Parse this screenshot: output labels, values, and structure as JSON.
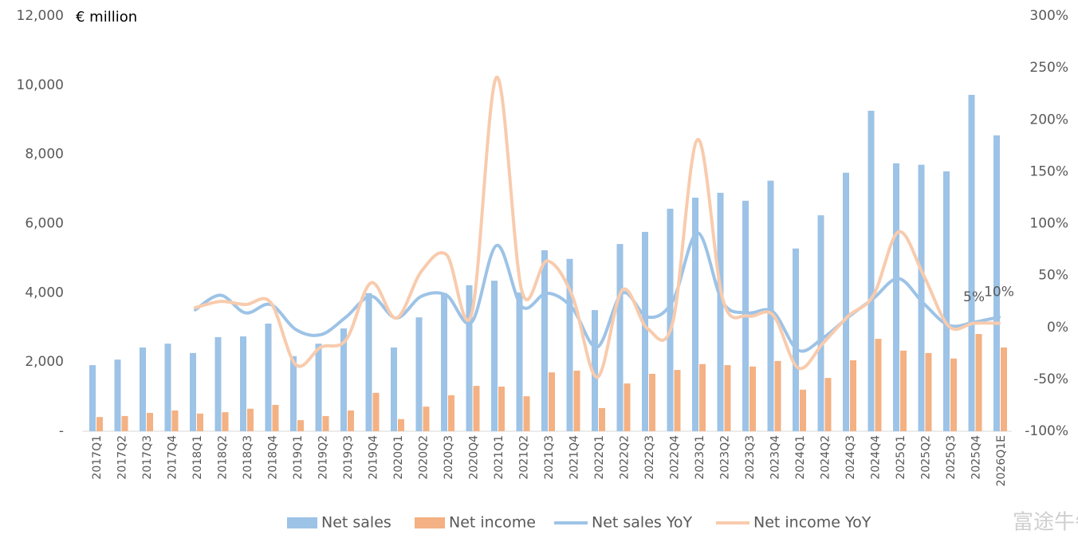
{
  "chart_data": {
    "type": "bar_line",
    "y_axis_label": "€ million",
    "watermark": "富途牛牛",
    "categories": [
      "2017Q1",
      "2017Q2",
      "2017Q3",
      "2017Q4",
      "2018Q1",
      "2018Q2",
      "2018Q3",
      "2018Q4",
      "2019Q1",
      "2019Q2",
      "2019Q3",
      "2019Q4",
      "2020Q1",
      "2020Q2",
      "2020Q3",
      "2020Q4",
      "2021Q1",
      "2021Q2",
      "2021Q3",
      "2021Q4",
      "2022Q1",
      "2022Q2",
      "2022Q3",
      "2022Q4",
      "2023Q1",
      "2023Q2",
      "2023Q3",
      "2023Q4",
      "2024Q1",
      "2024Q2",
      "2024Q3",
      "2024Q4",
      "2025Q1",
      "2025Q2",
      "2025Q3",
      "2025Q4",
      "2026Q1E"
    ],
    "series": [
      {
        "name": "Net sales",
        "type": "bar",
        "color": "#9dc3e6",
        "values": [
          1910,
          2070,
          2420,
          2530,
          2260,
          2720,
          2740,
          3110,
          2170,
          2530,
          2970,
          3990,
          2420,
          3290,
          3990,
          4220,
          4350,
          4010,
          5230,
          4980,
          3500,
          5410,
          5760,
          6430,
          6750,
          6890,
          6660,
          7240,
          5280,
          6240,
          7470,
          9260,
          7740,
          7700,
          7510,
          9720,
          8550
        ]
      },
      {
        "name": "Net income",
        "type": "bar",
        "color": "#f4b183",
        "values": [
          410,
          440,
          530,
          600,
          510,
          550,
          650,
          760,
          320,
          440,
          600,
          1110,
          350,
          710,
          1040,
          1310,
          1290,
          1010,
          1700,
          1750,
          670,
          1380,
          1660,
          1770,
          1940,
          1910,
          1870,
          2030,
          1200,
          1540,
          2050,
          2670,
          2330,
          2260,
          2100,
          2810,
          2420
        ]
      },
      {
        "name": "Net sales YoY",
        "type": "line",
        "axis": "y2",
        "color": "#9dc3e6",
        "values": [
          null,
          null,
          null,
          null,
          17,
          31,
          14,
          22,
          -2,
          -7,
          10,
          30,
          9,
          30,
          31,
          5,
          79,
          20,
          33,
          19,
          -19,
          33,
          10,
          25,
          91,
          24,
          14,
          15,
          -22,
          -10,
          10,
          28,
          47,
          23,
          2,
          5,
          10
        ],
        "value_labels": [
          null,
          null,
          null,
          null,
          null,
          null,
          null,
          null,
          null,
          null,
          null,
          null,
          null,
          null,
          null,
          null,
          null,
          null,
          null,
          null,
          null,
          null,
          null,
          null,
          null,
          null,
          null,
          null,
          null,
          null,
          null,
          null,
          null,
          null,
          null,
          "5%",
          "10%"
        ]
      },
      {
        "name": "Net income YoY",
        "type": "line",
        "axis": "y2",
        "color": "#f8cbad",
        "values": [
          null,
          null,
          null,
          null,
          19,
          25,
          22,
          24,
          -36,
          -19,
          -12,
          43,
          9,
          54,
          70,
          13,
          241,
          35,
          64,
          31,
          -48,
          36,
          -1,
          4,
          181,
          27,
          11,
          12,
          -39,
          -15,
          11,
          31,
          92,
          50,
          1,
          4,
          4
        ]
      }
    ],
    "ylim": [
      0,
      12000
    ],
    "yticks": [
      {
        "value": 0,
        "label": "-"
      },
      {
        "value": 2000,
        "label": "2,000"
      },
      {
        "value": 4000,
        "label": "4,000"
      },
      {
        "value": 6000,
        "label": "6,000"
      },
      {
        "value": 8000,
        "label": "8,000"
      },
      {
        "value": 10000,
        "label": "10,000"
      },
      {
        "value": 12000,
        "label": "12,000"
      }
    ],
    "y2lim": [
      -100,
      300
    ],
    "y2ticks": [
      {
        "value": -100,
        "label": "-100%"
      },
      {
        "value": -50,
        "label": "-50%"
      },
      {
        "value": 0,
        "label": "0%"
      },
      {
        "value": 50,
        "label": "50%"
      },
      {
        "value": 100,
        "label": "100%"
      },
      {
        "value": 150,
        "label": "150%"
      },
      {
        "value": 200,
        "label": "200%"
      },
      {
        "value": 250,
        "label": "250%"
      },
      {
        "value": 300,
        "label": "300%"
      }
    ],
    "grid": false,
    "legend": "bottom"
  }
}
